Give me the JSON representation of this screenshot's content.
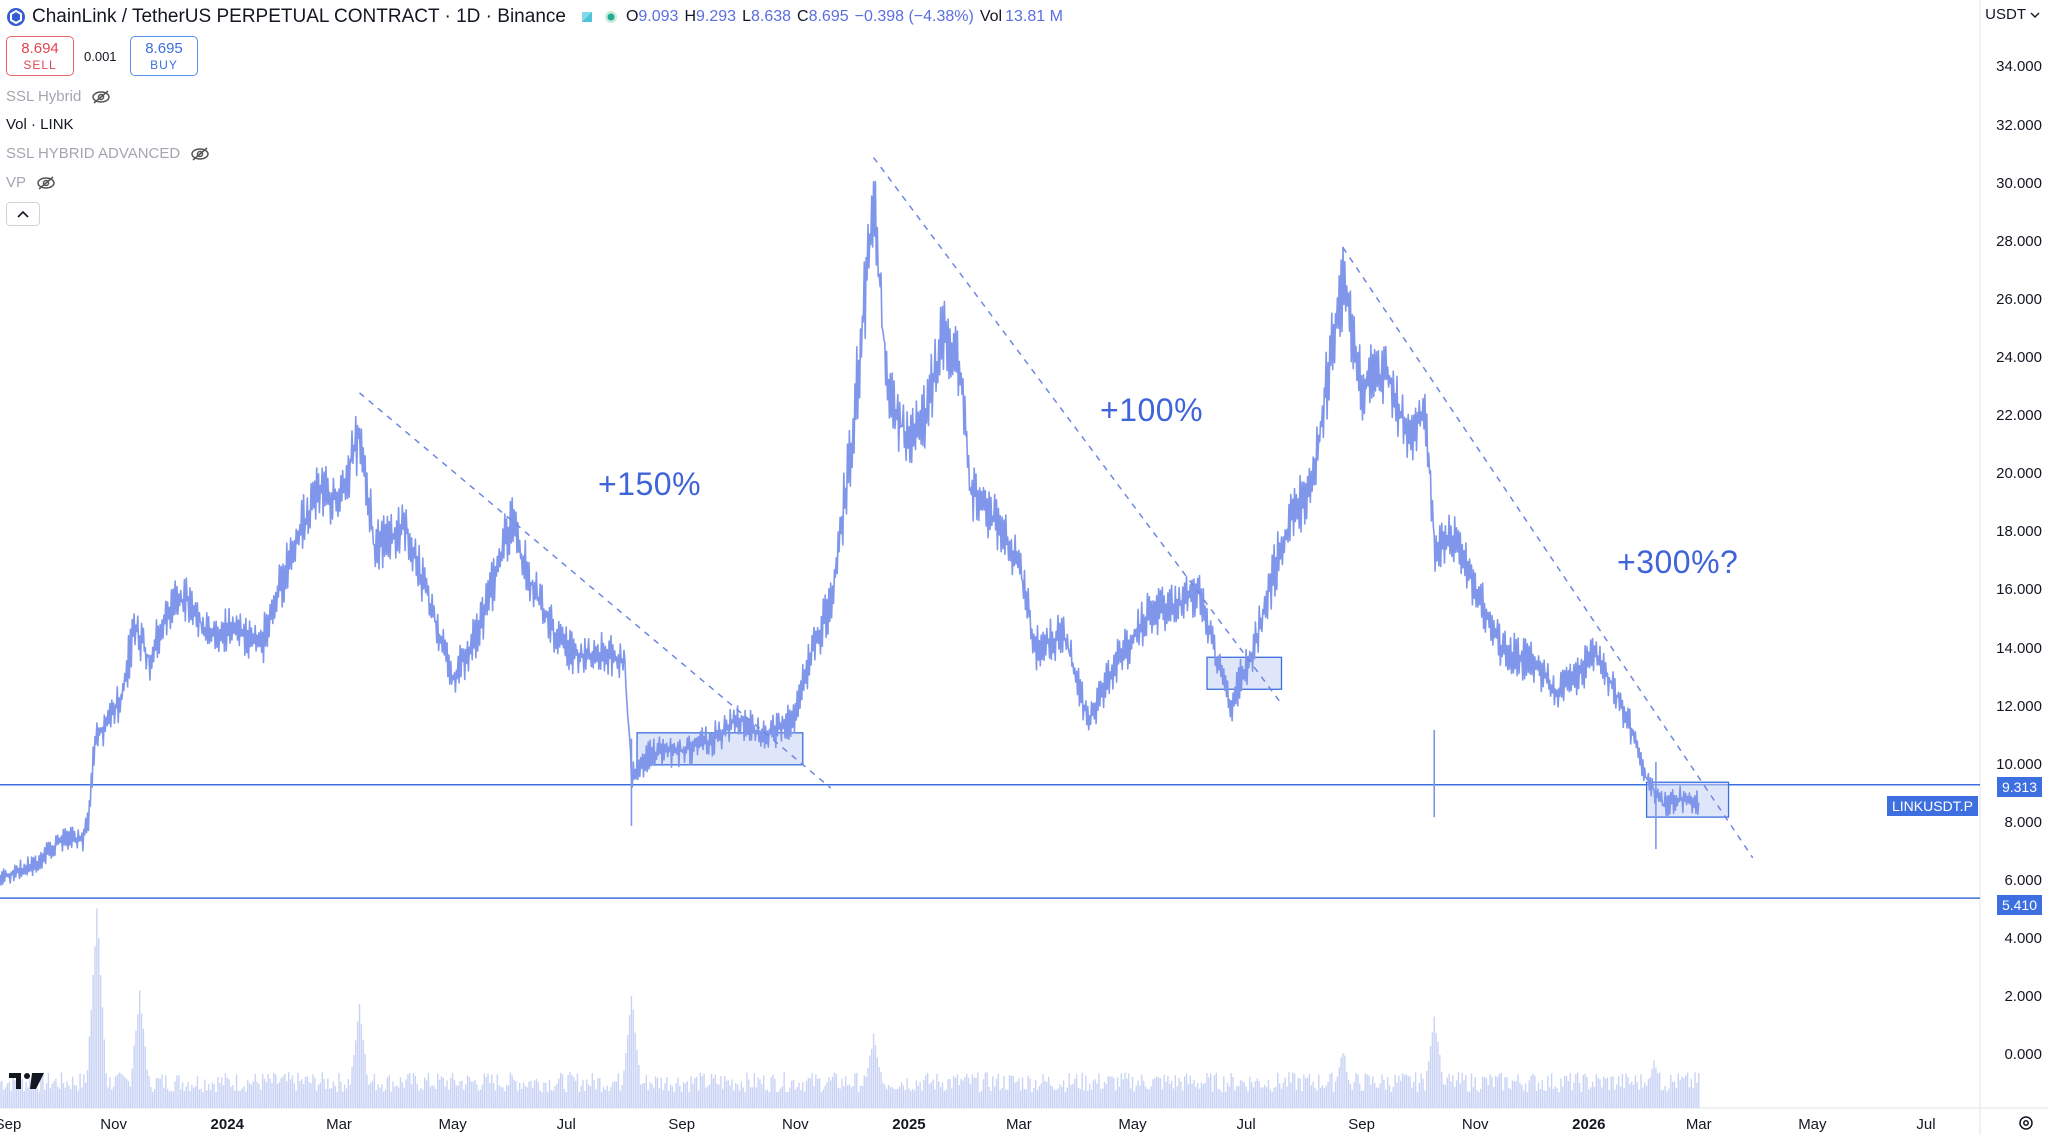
{
  "header": {
    "title": "ChainLink / TetherUS PERPETUAL CONTRACT · 1D · Binance",
    "ohlc": [
      {
        "label": "O",
        "value": "9.093"
      },
      {
        "label": "H",
        "value": "9.293"
      },
      {
        "label": "L",
        "value": "8.638"
      },
      {
        "label": "C",
        "value": "8.695"
      }
    ],
    "change": "−0.398 (−4.38%)",
    "vol_label": "Vol",
    "vol_value": "13.81 M"
  },
  "trade": {
    "sell_price": "8.694",
    "sell_label": "SELL",
    "spread": "0.001",
    "buy_price": "8.695",
    "buy_label": "BUY"
  },
  "indicators": [
    {
      "label": "SSL Hybrid",
      "hidden": true
    },
    {
      "label": "Vol · LINK",
      "hidden": false
    },
    {
      "label": "SSL HYBRID ADVANCED",
      "hidden": true
    },
    {
      "label": "VP",
      "hidden": true
    }
  ],
  "currency": "USDT",
  "annotations": [
    "+150%",
    "+100%",
    "+300%?"
  ],
  "price_tags": {
    "upper_value": "9.313",
    "symbol": "LINKUSDT.P",
    "lower_value": "5.410"
  },
  "colors": {
    "series": "#7f96ea",
    "volume": "#c9d3f5",
    "accent": "#3d6fe0",
    "trendline": "#6f86e3",
    "zone_fill": "#c7d2f4",
    "sell": "#e04552"
  },
  "icons": [
    "chainlink-icon",
    "pair-swap-icon",
    "status-dot-icon",
    "eye-hidden-icon",
    "chevron-up-icon",
    "tradingview-logo",
    "gear-icon"
  ],
  "chart_data": {
    "type": "line",
    "series_name": "LINKUSDT.P",
    "y_axis": {
      "ticks": [
        "34.000",
        "32.000",
        "30.000",
        "28.000",
        "26.000",
        "24.000",
        "22.000",
        "20.000",
        "18.000",
        "16.000",
        "14.000",
        "12.000",
        "10.000",
        "8.000",
        "6.000",
        "4.000",
        "2.000",
        "0.000"
      ],
      "range": [
        -0.4,
        34.6
      ],
      "position": "right"
    },
    "x_axis": {
      "labels": [
        "Sep",
        "Nov",
        "2024",
        "Mar",
        "May",
        "Jul",
        "Sep",
        "Nov",
        "2025",
        "Mar",
        "May",
        "Jul",
        "Sep",
        "Nov",
        "2026",
        "Mar",
        "May",
        "Jul"
      ],
      "bold_labels": [
        "2024",
        "2025",
        "2026"
      ],
      "range": [
        "2023-09-01",
        "2026-07-30"
      ]
    },
    "points": [
      [
        "2023-09-01",
        6.1
      ],
      [
        "2023-09-20",
        6.6
      ],
      [
        "2023-10-05",
        7.5
      ],
      [
        "2023-10-15",
        7.4
      ],
      [
        "2023-10-18",
        8.0
      ],
      [
        "2023-10-22",
        10.8
      ],
      [
        "2023-10-28",
        11.5
      ],
      [
        "2023-11-05",
        12.3
      ],
      [
        "2023-11-12",
        14.8
      ],
      [
        "2023-11-20",
        13.6
      ],
      [
        "2023-12-01",
        15.4
      ],
      [
        "2023-12-12",
        15.8
      ],
      [
        "2023-12-20",
        14.5
      ],
      [
        "2024-01-05",
        14.6
      ],
      [
        "2024-01-20",
        14.3
      ],
      [
        "2024-02-05",
        17.5
      ],
      [
        "2024-02-20",
        19.5
      ],
      [
        "2024-03-01",
        19.2
      ],
      [
        "2024-03-12",
        21.5
      ],
      [
        "2024-03-20",
        17.5
      ],
      [
        "2024-04-05",
        18.2
      ],
      [
        "2024-04-20",
        15.3
      ],
      [
        "2024-05-01",
        13.0
      ],
      [
        "2024-05-15",
        14.6
      ],
      [
        "2024-05-25",
        16.8
      ],
      [
        "2024-06-01",
        18.4
      ],
      [
        "2024-06-12",
        16.2
      ],
      [
        "2024-06-25",
        14.5
      ],
      [
        "2024-07-05",
        13.8
      ],
      [
        "2024-07-20",
        13.8
      ],
      [
        "2024-08-01",
        13.6
      ],
      [
        "2024-08-05",
        9.5
      ],
      [
        "2024-08-15",
        10.4
      ],
      [
        "2024-09-01",
        10.5
      ],
      [
        "2024-09-15",
        10.8
      ],
      [
        "2024-10-01",
        11.6
      ],
      [
        "2024-10-15",
        11.0
      ],
      [
        "2024-10-30",
        11.5
      ],
      [
        "2024-11-10",
        14.0
      ],
      [
        "2024-11-20",
        15.5
      ],
      [
        "2024-12-01",
        21.0
      ],
      [
        "2024-12-08",
        26.0
      ],
      [
        "2024-12-13",
        29.5
      ],
      [
        "2024-12-20",
        23.0
      ],
      [
        "2025-01-01",
        21.0
      ],
      [
        "2025-01-10",
        22.0
      ],
      [
        "2025-01-20",
        25.0
      ],
      [
        "2025-01-28",
        23.5
      ],
      [
        "2025-02-03",
        19.5
      ],
      [
        "2025-02-15",
        18.5
      ],
      [
        "2025-03-01",
        16.8
      ],
      [
        "2025-03-10",
        14.0
      ],
      [
        "2025-03-25",
        14.5
      ],
      [
        "2025-04-07",
        11.5
      ],
      [
        "2025-04-20",
        13.3
      ],
      [
        "2025-05-10",
        15.2
      ],
      [
        "2025-05-25",
        15.5
      ],
      [
        "2025-06-05",
        16.0
      ],
      [
        "2025-06-15",
        13.6
      ],
      [
        "2025-06-22",
        12.0
      ],
      [
        "2025-07-05",
        14.0
      ],
      [
        "2025-07-15",
        16.5
      ],
      [
        "2025-07-25",
        18.5
      ],
      [
        "2025-08-05",
        19.5
      ],
      [
        "2025-08-15",
        24.0
      ],
      [
        "2025-08-22",
        26.5
      ],
      [
        "2025-09-01",
        23.0
      ],
      [
        "2025-09-15",
        23.5
      ],
      [
        "2025-09-25",
        21.5
      ],
      [
        "2025-10-05",
        22.0
      ],
      [
        "2025-10-10",
        17.5
      ],
      [
        "2025-10-20",
        17.8
      ],
      [
        "2025-11-01",
        16.0
      ],
      [
        "2025-11-15",
        14.0
      ],
      [
        "2025-12-01",
        13.5
      ],
      [
        "2025-12-15",
        12.5
      ],
      [
        "2026-01-05",
        13.8
      ],
      [
        "2026-01-15",
        12.5
      ],
      [
        "2026-01-25",
        11.0
      ],
      [
        "2026-02-01",
        9.5
      ],
      [
        "2026-02-10",
        8.6
      ],
      [
        "2026-02-20",
        8.8
      ],
      [
        "2026-03-01",
        8.7
      ]
    ],
    "horizontal_lines": [
      9.313,
      5.41
    ],
    "trendlines": [
      {
        "from": [
          "2024-03-12",
          22.8
        ],
        "to": [
          "2024-11-20",
          9.2
        ]
      },
      {
        "from": [
          "2024-12-13",
          30.9
        ],
        "to": [
          "2025-07-20",
          12.1
        ]
      },
      {
        "from": [
          "2025-08-22",
          27.8
        ],
        "to": [
          "2026-03-30",
          6.8
        ]
      }
    ],
    "consolidation_zones": [
      {
        "from": "2024-08-08",
        "to": "2024-11-05",
        "low": 10.0,
        "high": 11.1
      },
      {
        "from": "2025-06-10",
        "to": "2025-07-20",
        "low": 12.6,
        "high": 13.7
      },
      {
        "from": "2026-02-01",
        "to": "2026-03-17",
        "low": 8.2,
        "high": 9.4
      }
    ],
    "volume_peaks": [
      [
        "2023-10-23",
        4.3
      ],
      [
        "2023-11-15",
        2.5
      ],
      [
        "2024-03-12",
        2.2
      ],
      [
        "2024-08-05",
        2.4
      ],
      [
        "2024-12-13",
        1.5
      ],
      [
        "2025-08-22",
        1.2
      ],
      [
        "2025-10-10",
        2.0
      ],
      [
        "2026-02-05",
        1.0
      ]
    ]
  }
}
